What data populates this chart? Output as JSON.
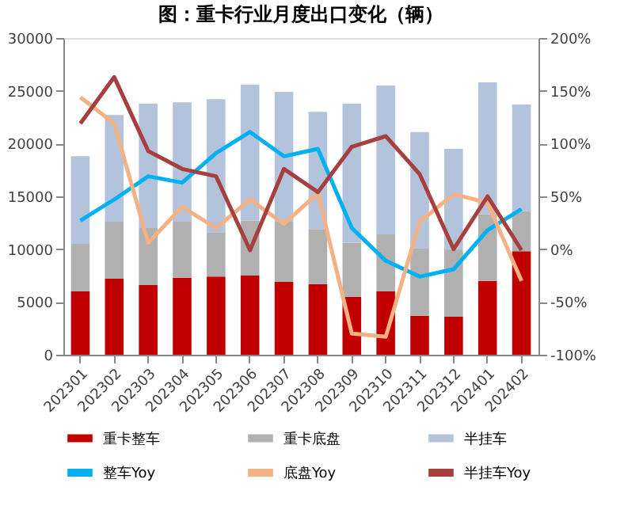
{
  "chart_data": {
    "type": "bar",
    "title": "图：重卡行业月度出口变化（辆）",
    "categories": [
      "202301",
      "202302",
      "202303",
      "202304",
      "202305",
      "202306",
      "202307",
      "202308",
      "202309",
      "202310",
      "202311",
      "202312",
      "202401",
      "202402"
    ],
    "stacked": true,
    "series": [
      {
        "name": "重卡整车",
        "color": "#c00000",
        "values": [
          6000,
          7200,
          6600,
          7300,
          7400,
          7500,
          6900,
          6700,
          5500,
          6000,
          3700,
          3600,
          7000,
          9800
        ]
      },
      {
        "name": "重卡底盘",
        "color": "#b0b0b0",
        "values": [
          4500,
          5400,
          5400,
          5300,
          4200,
          5200,
          5700,
          5200,
          5100,
          5400,
          6400,
          6400,
          6300,
          3800
        ]
      },
      {
        "name": "半挂车",
        "color": "#b4c3dc",
        "values": [
          8300,
          10100,
          11800,
          11300,
          12600,
          12900,
          12300,
          11100,
          13200,
          14100,
          11000,
          9500,
          12500,
          10100
        ]
      },
      {
        "name": "整车Yoy",
        "type": "line",
        "axis": "y2",
        "color": "#00b0f0",
        "values": [
          27,
          47,
          69,
          63,
          91,
          111,
          88,
          95,
          20,
          -11,
          -26,
          -19,
          18,
          38
        ]
      },
      {
        "name": "底盘Yoy",
        "type": "line",
        "axis": "y2",
        "color": "#f4b183",
        "values": [
          144,
          119,
          6,
          40,
          20,
          47,
          24,
          53,
          -80,
          -83,
          26,
          52,
          44,
          -30
        ]
      },
      {
        "name": "半挂车Yoy",
        "type": "line",
        "axis": "y2",
        "color": "#a5403f",
        "values": [
          119,
          163,
          93,
          76,
          69,
          -1,
          76,
          54,
          97,
          107,
          71,
          0,
          50,
          -1
        ]
      }
    ],
    "ylim": [
      0,
      30000
    ],
    "yticks": [
      0,
      5000,
      10000,
      15000,
      20000,
      25000,
      30000
    ],
    "y2lim": [
      -100,
      200
    ],
    "y2ticks": [
      {
        "value": -100,
        "label": "-100%"
      },
      {
        "value": -50,
        "label": "-50%"
      },
      {
        "value": 0,
        "label": "0%"
      },
      {
        "value": 50,
        "label": "50%"
      },
      {
        "value": 100,
        "label": "100%"
      },
      {
        "value": 150,
        "label": "150%"
      },
      {
        "value": 200,
        "label": "200%"
      }
    ],
    "grid": false,
    "legend": "bottom",
    "line_style": "solid"
  }
}
